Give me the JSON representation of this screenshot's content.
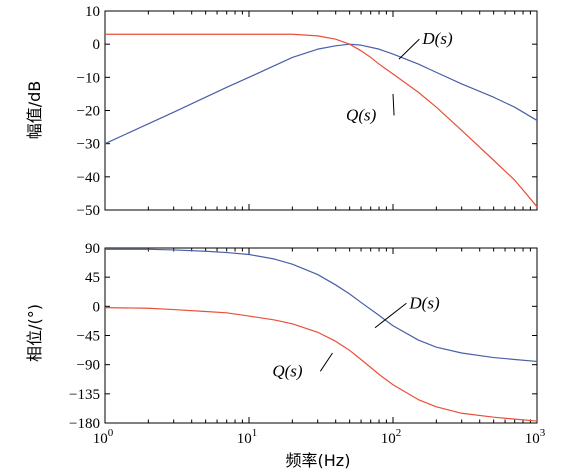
{
  "chart_data": [
    {
      "type": "line",
      "ylabel": "幅值/dB",
      "xscale": "log",
      "xlim": [
        1,
        1000
      ],
      "ylim": [
        -50,
        10
      ],
      "grid": false,
      "yticks": [
        10,
        0,
        -10,
        -20,
        -30,
        -40,
        -50
      ],
      "yticklabels": [
        "10",
        "0",
        "−10",
        "−20",
        "−30",
        "−40",
        "−50"
      ],
      "series": [
        {
          "name": "D(s)",
          "color": "#4a5fa8",
          "x": [
            1,
            1.5,
            2,
            3,
            5,
            7,
            10,
            15,
            20,
            30,
            40,
            50,
            60,
            80,
            100,
            150,
            200,
            300,
            500,
            700,
            1000
          ],
          "y": [
            -30,
            -26.5,
            -24,
            -20.5,
            -16,
            -13,
            -10,
            -6.5,
            -4,
            -1.5,
            -0.5,
            0,
            -0.3,
            -1.5,
            -3,
            -6,
            -8.5,
            -12,
            -16,
            -19,
            -23
          ]
        },
        {
          "name": "Q(s)",
          "color": "#e8503a",
          "x": [
            1,
            3,
            10,
            20,
            30,
            40,
            50,
            60,
            70,
            80,
            100,
            150,
            200,
            300,
            500,
            700,
            1000
          ],
          "y": [
            3,
            3,
            3,
            3,
            2.5,
            1.5,
            0,
            -2,
            -4,
            -6,
            -9,
            -14.5,
            -19,
            -26,
            -35,
            -41,
            -49
          ]
        }
      ],
      "annotations": [
        {
          "text": "D(s)",
          "point": [
            110,
            -4.5
          ],
          "label_at": [
            160,
            0
          ]
        },
        {
          "text": "Q(s)",
          "point": [
            100,
            -15
          ],
          "label_at": [
            65,
            -23
          ]
        }
      ]
    },
    {
      "type": "line",
      "xlabel": "频率(Hz)",
      "ylabel": "相位/(°)",
      "xscale": "log",
      "xlim": [
        1,
        1000
      ],
      "ylim": [
        -180,
        90
      ],
      "grid": false,
      "xticks": [
        1,
        10,
        100,
        1000
      ],
      "xtick_base": "10",
      "xtick_exponents": [
        "0",
        "1",
        "2",
        "3"
      ],
      "yticks": [
        90,
        45,
        0,
        -45,
        -90,
        -135,
        -180
      ],
      "yticklabels": [
        "90",
        "45",
        "0",
        "−45",
        "−90",
        "−135",
        "−180"
      ],
      "series": [
        {
          "name": "D(s)",
          "color": "#4a5fa8",
          "x": [
            1,
            2,
            3,
            5,
            7,
            10,
            15,
            20,
            30,
            40,
            50,
            60,
            80,
            100,
            150,
            200,
            300,
            500,
            700,
            1000
          ],
          "y": [
            88,
            88,
            87,
            85,
            83,
            80,
            73,
            65,
            49,
            33,
            19,
            6,
            -14,
            -30,
            -52,
            -63,
            -72,
            -79,
            -82,
            -85
          ]
        },
        {
          "name": "Q(s)",
          "color": "#e8503a",
          "x": [
            1,
            2,
            3,
            5,
            7,
            10,
            15,
            20,
            30,
            40,
            50,
            60,
            80,
            100,
            150,
            200,
            300,
            500,
            700,
            1000
          ],
          "y": [
            -2,
            -3,
            -5,
            -8,
            -10,
            -15,
            -21,
            -27,
            -40,
            -54,
            -68,
            -82,
            -105,
            -121,
            -144,
            -155,
            -165,
            -171,
            -174,
            -177
          ]
        }
      ],
      "annotations": [
        {
          "text": "D(s)",
          "point": [
            75,
            -33
          ],
          "label_at": [
            130,
            -3
          ]
        },
        {
          "text": "Q(s)",
          "point": [
            38,
            -72
          ],
          "label_at": [
            20,
            -108
          ]
        }
      ]
    }
  ]
}
